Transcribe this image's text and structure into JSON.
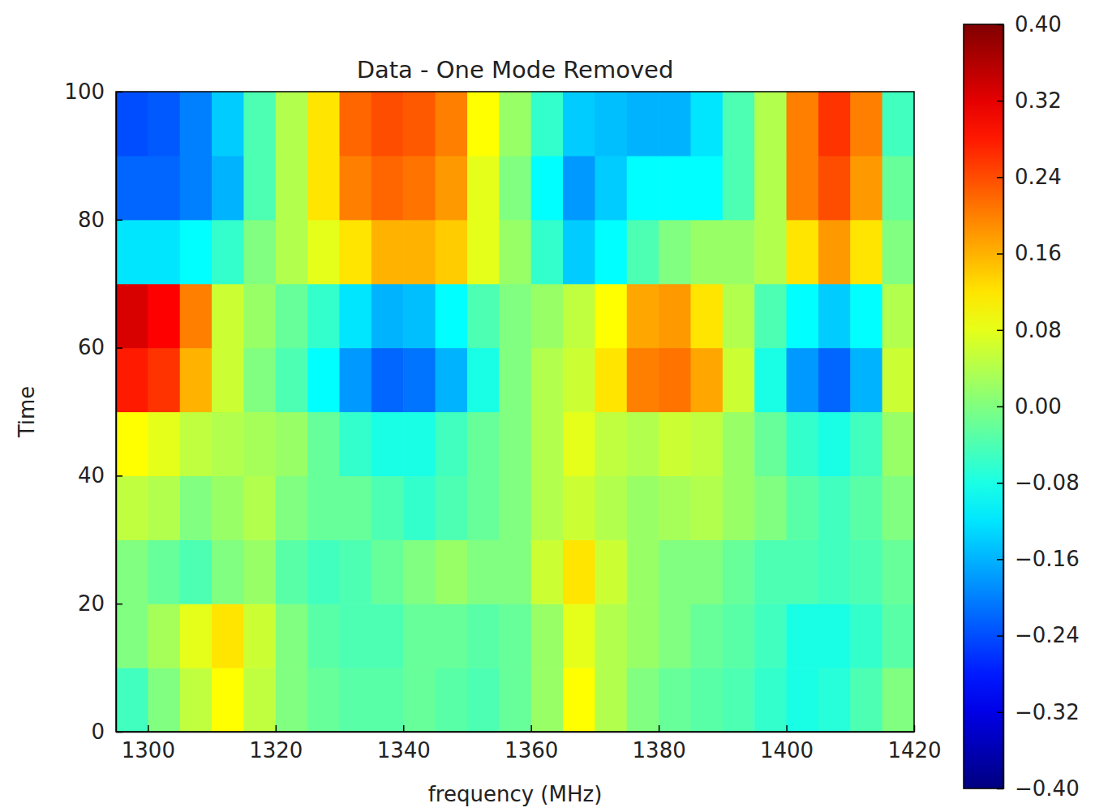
{
  "chart_data": {
    "type": "heatmap",
    "title": "Data - One Mode Removed",
    "x_label": "frequency (MHz)",
    "y_label": "Time",
    "color": "jet",
    "x": [
      1297.5,
      1302.5,
      1307.5,
      1312.5,
      1317.5,
      1322.5,
      1327.5,
      1332.5,
      1337.5,
      1342.5,
      1347.5,
      1352.5,
      1357.5,
      1362.5,
      1367.5,
      1372.5,
      1377.5,
      1382.5,
      1387.5,
      1392.5,
      1397.5,
      1402.5,
      1407.5,
      1412.5,
      1417.5
    ],
    "y": [
      5,
      15,
      25,
      35,
      45,
      55,
      65,
      75,
      85,
      95
    ],
    "values": [
      [
        -0.05,
        0.0,
        0.05,
        0.1,
        0.05,
        0.0,
        -0.02,
        -0.03,
        -0.03,
        -0.02,
        -0.03,
        -0.04,
        -0.02,
        0.02,
        0.1,
        0.04,
        0.0,
        -0.02,
        -0.03,
        -0.04,
        -0.06,
        -0.08,
        -0.07,
        -0.04,
        0.0
      ],
      [
        0.0,
        0.03,
        0.08,
        0.12,
        0.06,
        0.0,
        -0.03,
        -0.04,
        -0.04,
        -0.02,
        -0.02,
        -0.03,
        -0.02,
        0.02,
        0.08,
        0.04,
        0.02,
        0.0,
        -0.02,
        -0.03,
        -0.05,
        -0.08,
        -0.08,
        -0.06,
        -0.03
      ],
      [
        0.0,
        -0.02,
        -0.04,
        0.0,
        0.02,
        -0.03,
        -0.05,
        -0.04,
        -0.02,
        0.0,
        0.02,
        0.0,
        0.0,
        0.06,
        0.12,
        0.06,
        0.02,
        0.0,
        0.0,
        -0.02,
        -0.04,
        -0.04,
        -0.05,
        -0.04,
        -0.02
      ],
      [
        0.05,
        0.04,
        0.0,
        0.02,
        0.04,
        0.0,
        -0.02,
        -0.02,
        -0.04,
        -0.06,
        -0.04,
        -0.02,
        0.0,
        0.04,
        0.06,
        0.04,
        0.02,
        0.03,
        0.04,
        0.02,
        0.0,
        -0.03,
        -0.05,
        -0.03,
        0.0
      ],
      [
        0.1,
        0.08,
        0.05,
        0.04,
        0.03,
        0.02,
        -0.02,
        -0.06,
        -0.08,
        -0.08,
        -0.05,
        -0.02,
        0.0,
        0.04,
        0.08,
        0.05,
        0.04,
        0.06,
        0.05,
        0.02,
        -0.02,
        -0.06,
        -0.08,
        -0.05,
        0.02
      ],
      [
        0.28,
        0.26,
        0.16,
        0.06,
        0.0,
        -0.04,
        -0.1,
        -0.18,
        -0.22,
        -0.21,
        -0.16,
        -0.08,
        0.0,
        0.04,
        0.06,
        0.12,
        0.2,
        0.21,
        0.17,
        0.06,
        -0.08,
        -0.18,
        -0.22,
        -0.16,
        0.06
      ],
      [
        0.33,
        0.3,
        0.2,
        0.06,
        0.02,
        -0.02,
        -0.06,
        -0.12,
        -0.16,
        -0.15,
        -0.1,
        -0.04,
        0.0,
        0.02,
        0.05,
        0.1,
        0.17,
        0.18,
        0.12,
        0.04,
        -0.04,
        -0.1,
        -0.14,
        -0.1,
        0.04
      ],
      [
        -0.12,
        -0.12,
        -0.1,
        -0.06,
        0.0,
        0.04,
        0.08,
        0.12,
        0.16,
        0.16,
        0.14,
        0.08,
        0.02,
        -0.06,
        -0.14,
        -0.1,
        -0.04,
        0.0,
        0.02,
        0.02,
        0.04,
        0.12,
        0.18,
        0.12,
        0.0
      ],
      [
        -0.22,
        -0.22,
        -0.2,
        -0.16,
        -0.04,
        0.04,
        0.12,
        0.2,
        0.22,
        0.21,
        0.18,
        0.08,
        0.0,
        -0.1,
        -0.18,
        -0.14,
        -0.1,
        -0.1,
        -0.1,
        -0.04,
        0.04,
        0.2,
        0.24,
        0.18,
        -0.02
      ],
      [
        -0.24,
        -0.23,
        -0.2,
        -0.14,
        -0.04,
        0.04,
        0.12,
        0.22,
        0.24,
        0.23,
        0.2,
        0.1,
        0.02,
        -0.06,
        -0.14,
        -0.15,
        -0.16,
        -0.16,
        -0.12,
        -0.04,
        0.04,
        0.2,
        0.26,
        0.2,
        -0.05
      ]
    ],
    "xlim": [
      1295,
      1420
    ],
    "xticks": [
      1300,
      1320,
      1340,
      1360,
      1380,
      1400,
      1420
    ],
    "ylim": [
      0,
      100
    ],
    "yticks": [
      0,
      20,
      40,
      60,
      80,
      100
    ],
    "colorbar": {
      "range": [
        -0.4,
        0.4
      ],
      "ticks": [
        {
          "value": 0.4,
          "label": "0.40"
        },
        {
          "value": 0.32,
          "label": "0.32"
        },
        {
          "value": 0.24,
          "label": "0.24"
        },
        {
          "value": 0.16,
          "label": "0.16"
        },
        {
          "value": 0.08,
          "label": "0.08"
        },
        {
          "value": 0,
          "label": "0.00"
        },
        {
          "value": -0.08,
          "label": "−0.08"
        },
        {
          "value": -0.16,
          "label": "−0.16"
        },
        {
          "value": -0.24,
          "label": "−0.24"
        },
        {
          "value": -0.32,
          "label": "−0.32"
        },
        {
          "value": -0.4,
          "label": "−0.40"
        }
      ]
    }
  }
}
